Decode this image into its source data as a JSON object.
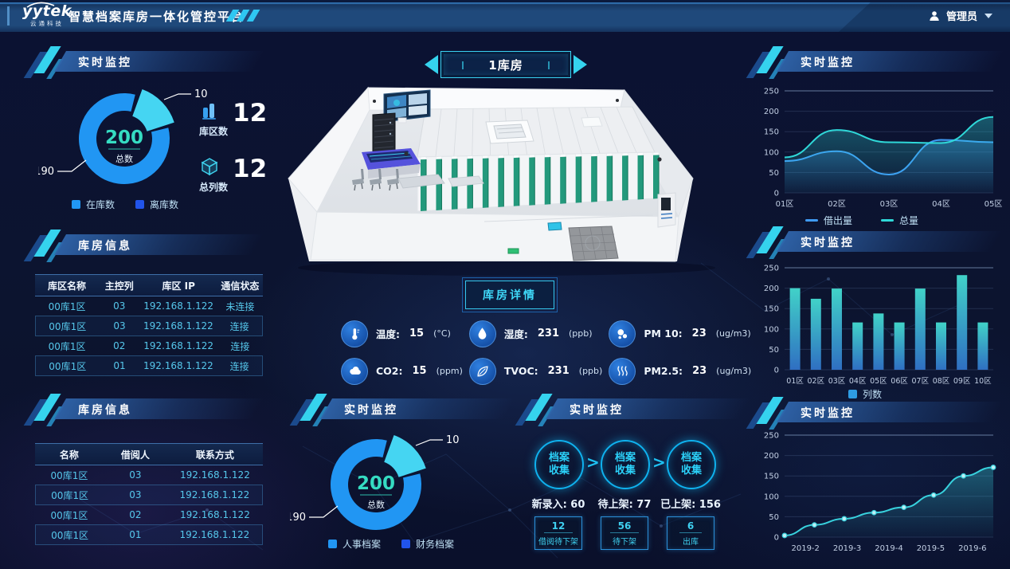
{
  "header": {
    "logo_main": "yytek",
    "logo_sub": "云通科技",
    "title": "智慧档案库房一体化管控平台",
    "user_label": "管理员"
  },
  "panels": {
    "left_monitor": {
      "title": "实时监控",
      "stats": [
        {
          "icon": "zone-bars-icon",
          "label": "库区数",
          "value": "12"
        },
        {
          "icon": "column-cube-icon",
          "label": "总列数",
          "value": "12"
        }
      ]
    },
    "warehouse_info_1": {
      "title": "库房信息",
      "columns": [
        "库区名称",
        "主控列",
        "库区 IP",
        "通信状态"
      ],
      "rows": [
        [
          "00库1区",
          "03",
          "192.168.1.122",
          "未连接"
        ],
        [
          "00库1区",
          "03",
          "192.168.1.122",
          "连接"
        ],
        [
          "00库1区",
          "02",
          "192.168.1.122",
          "连接"
        ],
        [
          "00库1区",
          "01",
          "192.168.1.122",
          "连接"
        ]
      ]
    },
    "warehouse_info_2": {
      "title": "库房信息",
      "columns": [
        "名称",
        "借阅人",
        "联系方式"
      ],
      "rows": [
        [
          "00库1区",
          "03",
          "192.168.1.122"
        ],
        [
          "00库1区",
          "03",
          "192.168.1.122"
        ],
        [
          "00库1区",
          "02",
          "192.168.1.122"
        ],
        [
          "00库1区",
          "01",
          "192.168.1.122"
        ]
      ]
    },
    "center_monitor": {
      "title": "实时监控"
    },
    "flow_monitor": {
      "title": "实时监控",
      "nodes": [
        {
          "circle": "档案收集",
          "stat_label": "新录入:",
          "stat_value": "60"
        },
        {
          "circle": "档案收集",
          "stat_label": "待上架:",
          "stat_value": "77"
        },
        {
          "circle": "档案收集",
          "stat_label": "已上架:",
          "stat_value": "156"
        }
      ],
      "boxes": [
        {
          "value": "12",
          "label": "借阅待下架"
        },
        {
          "value": "56",
          "label": "待下架"
        },
        {
          "value": "6",
          "label": "出库"
        }
      ]
    },
    "right_line": {
      "title": "实时监控"
    },
    "right_bar": {
      "title": "实时监控"
    },
    "right_trend": {
      "title": "实时监控"
    }
  },
  "center": {
    "room_selector": "1库房",
    "detail_button": "库房详情",
    "sensors": [
      {
        "icon": "thermometer-icon",
        "label": "温度:",
        "value": "15",
        "unit": "(°C)"
      },
      {
        "icon": "co2-cloud-icon",
        "label": "CO2:",
        "value": "15",
        "unit": "(ppm)"
      },
      {
        "icon": "humidity-drop-icon",
        "label": "湿度:",
        "value": "231",
        "unit": "(ppb)"
      },
      {
        "icon": "tvoc-leaf-icon",
        "label": "TVOC:",
        "value": "231",
        "unit": "(ppb)"
      },
      {
        "icon": "pm10-particles-icon",
        "label": "PM 10:",
        "value": "23",
        "unit": "(ug/m3)"
      },
      {
        "icon": "pm25-waves-icon",
        "label": "PM2.5:",
        "value": "23",
        "unit": "(ug/m3)"
      }
    ]
  },
  "colors": {
    "accent_cyan": "#35d3ee",
    "primary_blue": "#2196f3",
    "deep_blue": "#2154ea",
    "teal_text": "#35dcc2"
  },
  "chart_data": [
    {
      "id": "storage-donut",
      "type": "donut",
      "title": "实时监控",
      "center_value": "200",
      "center_label": "总数",
      "slices": [
        {
          "label": "在库数",
          "value": 190,
          "color": "#2196f3"
        },
        {
          "label": "离库数",
          "value": 10,
          "color": "#45d5f2"
        }
      ],
      "legend": [
        {
          "label": "在库数",
          "color": "#2196f3"
        },
        {
          "label": "离库数",
          "color": "#2154ea"
        }
      ],
      "callouts": {
        "main": "190",
        "secondary": "10"
      }
    },
    {
      "id": "zone-lines",
      "type": "line",
      "title": "实时监控",
      "categories": [
        "01区",
        "02区",
        "03区",
        "04区",
        "05区"
      ],
      "ylim": [
        0,
        250
      ],
      "yticks": [
        0,
        50,
        100,
        150,
        200,
        250
      ],
      "series": [
        {
          "name": "借出量",
          "color": "#3f9bf5",
          "values": [
            78,
            102,
            45,
            130,
            124
          ]
        },
        {
          "name": "总量",
          "color": "#2fd8d8",
          "values": [
            87,
            154,
            124,
            122,
            186
          ]
        }
      ],
      "legend_position": "bottom"
    },
    {
      "id": "zone-bars",
      "type": "bar",
      "title": "实时监控",
      "categories": [
        "01区",
        "02区",
        "03区",
        "04区",
        "05区",
        "06区",
        "07区",
        "08区",
        "09区",
        "10区"
      ],
      "values": [
        200,
        174,
        199,
        116,
        138,
        116,
        199,
        116,
        232,
        116
      ],
      "ylim": [
        0,
        250
      ],
      "yticks": [
        0,
        50,
        100,
        150,
        200,
        250
      ],
      "legend": [
        {
          "label": "列数",
          "color": "#2e9ce2"
        }
      ]
    },
    {
      "id": "archive-donut",
      "type": "donut",
      "title": "实时监控",
      "center_value": "200",
      "center_label": "总数",
      "slices": [
        {
          "label": "人事档案",
          "value": 190,
          "color": "#2196f3"
        },
        {
          "label": "财务档案",
          "value": 10,
          "color": "#45d5f2"
        }
      ],
      "legend": [
        {
          "label": "人事档案",
          "color": "#2196f3"
        },
        {
          "label": "财务档案",
          "color": "#2154ea"
        }
      ],
      "callouts": {
        "main": "190",
        "secondary": "10"
      }
    },
    {
      "id": "trend-line",
      "type": "line",
      "title": "实时监控",
      "categories": [
        "2019-2",
        "2019-3",
        "2019-4",
        "2019-5",
        "2019-6"
      ],
      "ylim": [
        0,
        250
      ],
      "yticks": [
        0,
        50,
        100,
        150,
        200,
        250
      ],
      "series": [
        {
          "name": "",
          "color": "#38d2de",
          "values": [
            4,
            30,
            45,
            60,
            73,
            103,
            150,
            171
          ],
          "markers": true,
          "area": true
        }
      ],
      "label_mode": "spread"
    }
  ]
}
